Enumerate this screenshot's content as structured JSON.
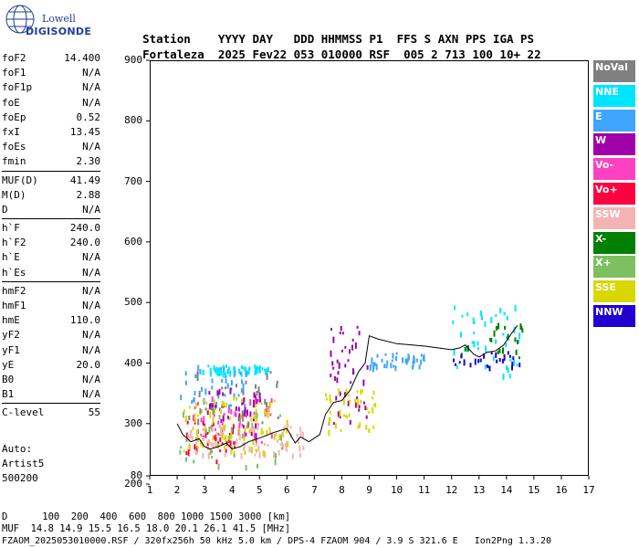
{
  "logo": {
    "line1": "Lowell",
    "line2": "DIGISONDE"
  },
  "header": {
    "labels": [
      "Station",
      "YYYY DAY",
      "DDD HHMMSS P1",
      "FFS S AXN PPS IGA PS"
    ],
    "values": [
      "Fortaleza",
      "2025 Fev22",
      "053 010000 RSF",
      "005 2 713 100 10+ 22"
    ]
  },
  "parameters": [
    [
      {
        "name": "foF2",
        "value": "14.400"
      },
      {
        "name": "foF1",
        "value": "N/A"
      },
      {
        "name": "foF1p",
        "value": "N/A"
      },
      {
        "name": "foE",
        "value": "N/A"
      },
      {
        "name": "foEp",
        "value": "0.52"
      },
      {
        "name": "fxI",
        "value": "13.45"
      },
      {
        "name": "foEs",
        "value": "N/A"
      },
      {
        "name": "fmin",
        "value": "2.30"
      }
    ],
    [
      {
        "name": "MUF(D)",
        "value": "41.49"
      },
      {
        "name": "M(D)",
        "value": "2.88"
      },
      {
        "name": "D",
        "value": "N/A"
      }
    ],
    [
      {
        "name": "h`F",
        "value": "240.0"
      },
      {
        "name": "h`F2",
        "value": "240.0"
      },
      {
        "name": "h`E",
        "value": "N/A"
      },
      {
        "name": "h`Es",
        "value": "N/A"
      }
    ],
    [
      {
        "name": "hmF2",
        "value": "N/A"
      },
      {
        "name": "hmF1",
        "value": "N/A"
      },
      {
        "name": "hmE",
        "value": "110.0"
      },
      {
        "name": "yF2",
        "value": "N/A"
      },
      {
        "name": "yF1",
        "value": "N/A"
      },
      {
        "name": "yE",
        "value": "20.0"
      },
      {
        "name": "B0",
        "value": "N/A"
      },
      {
        "name": "B1",
        "value": "N/A"
      }
    ],
    [
      {
        "name": "C-level",
        "value": "55"
      }
    ]
  ],
  "auto": {
    "line1": "Auto:",
    "line2": "Artist5",
    "line3": "500200"
  },
  "legend": [
    {
      "label": "NoVal",
      "color": "#808080"
    },
    {
      "label": "NNE",
      "color": "#00e5ff"
    },
    {
      "label": "E",
      "color": "#3ea6ff"
    },
    {
      "label": "W",
      "color": "#a000a8"
    },
    {
      "label": "Vo-",
      "color": "#ff40c0"
    },
    {
      "label": "Vo+",
      "color": "#ff0040"
    },
    {
      "label": "SSW",
      "color": "#f4b4b4"
    },
    {
      "label": "X-",
      "color": "#008000"
    },
    {
      "label": "X+",
      "color": "#7cc060"
    },
    {
      "label": "SSE",
      "color": "#d8d800"
    },
    {
      "label": "NNW",
      "color": "#2000d0"
    }
  ],
  "footer": {
    "d_line": "D      100  200  400  600  800 1000 1500 3000 [km]",
    "muf_line": "MUF  14.8 14.9 15.5 16.5 18.0 20.1 26.1 41.5 [MHz]",
    "file_line": "FZAOM_2025053010000.RSF / 320fx256h 50 kHz 5.0 km / DPS-4 FZAOM 904 / 3.9 S 321.6 E   Ion2Png 1.3.20"
  },
  "chart_data": {
    "type": "scatter",
    "xlim": [
      1,
      17
    ],
    "ylim": [
      80,
      900
    ],
    "x_ticks": [
      "1",
      "2",
      "3",
      "4",
      "5",
      "6",
      "7",
      "8",
      "9",
      "10",
      "11",
      "12",
      "13",
      "14",
      "15",
      "16",
      "17"
    ],
    "y_ticks": [
      "900",
      "800",
      "700",
      "600",
      "500",
      "400",
      "300",
      "200",
      "80"
    ],
    "trace": {
      "name": "",
      "x": [
        2.0,
        2.2,
        2.5,
        2.8,
        3.0,
        3.2,
        3.5,
        3.8,
        4.0,
        4.3,
        4.6,
        5.0,
        5.5,
        6.0,
        6.3,
        6.5,
        6.8,
        7.0,
        7.2,
        7.4,
        7.7,
        8.0,
        8.3,
        8.6,
        8.85,
        9.0,
        9.3,
        10.0,
        11.0,
        12.0,
        12.3,
        12.5,
        12.8,
        13.0,
        13.3,
        13.6,
        13.9,
        14.2,
        14.4
      ],
      "y": [
        300,
        282,
        270,
        275,
        262,
        258,
        262,
        268,
        258,
        262,
        270,
        276,
        285,
        292,
        268,
        278,
        270,
        276,
        282,
        315,
        335,
        338,
        355,
        385,
        400,
        445,
        440,
        432,
        428,
        422,
        425,
        430,
        415,
        410,
        418,
        420,
        430,
        450,
        462
      ]
    },
    "clusters": [
      {
        "color": "#00e5ff",
        "x": [
          2.9,
          5.3
        ],
        "y": [
          385,
          398
        ],
        "n": 60
      },
      {
        "color": "#3ea6ff",
        "x": [
          2.0,
          4.5
        ],
        "y": [
          330,
          400
        ],
        "n": 40
      },
      {
        "color": "#3ea6ff",
        "x": [
          9.0,
          11.0
        ],
        "y": [
          395,
          420
        ],
        "n": 40
      },
      {
        "color": "#00e5ff",
        "x": [
          12.0,
          14.5
        ],
        "y": [
          380,
          500
        ],
        "n": 45
      },
      {
        "color": "#a000a8",
        "x": [
          2.9,
          5.0
        ],
        "y": [
          280,
          360
        ],
        "n": 50
      },
      {
        "color": "#a000a8",
        "x": [
          7.5,
          9.0
        ],
        "y": [
          300,
          480
        ],
        "n": 45
      },
      {
        "color": "#ff40c0",
        "x": [
          2.5,
          5.5
        ],
        "y": [
          270,
          345
        ],
        "n": 40
      },
      {
        "color": "#ff0040",
        "x": [
          2.2,
          4.2
        ],
        "y": [
          240,
          310
        ],
        "n": 30
      },
      {
        "color": "#f4b4b4",
        "x": [
          2.3,
          6.7
        ],
        "y": [
          250,
          300
        ],
        "n": 90
      },
      {
        "color": "#d8d800",
        "x": [
          2.2,
          6.0
        ],
        "y": [
          255,
          345
        ],
        "n": 90
      },
      {
        "color": "#d8d800",
        "x": [
          7.3,
          9.2
        ],
        "y": [
          290,
          360
        ],
        "n": 40
      },
      {
        "color": "#7cc060",
        "x": [
          2.0,
          6.0
        ],
        "y": [
          230,
          320
        ],
        "n": 30
      },
      {
        "color": "#008000",
        "x": [
          12.2,
          14.8
        ],
        "y": [
          410,
          470
        ],
        "n": 20
      },
      {
        "color": "#2000d0",
        "x": [
          12.0,
          14.5
        ],
        "y": [
          395,
          420
        ],
        "n": 25
      },
      {
        "color": "#808080",
        "x": [
          2.4,
          6.0
        ],
        "y": [
          300,
          400
        ],
        "n": 30
      }
    ]
  }
}
